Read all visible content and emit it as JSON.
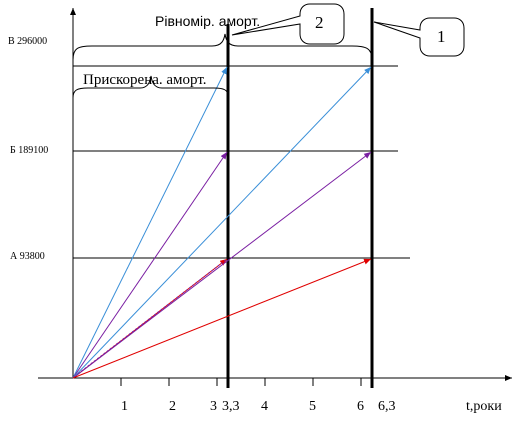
{
  "y_labels": {
    "v": "В 296000",
    "b": "Б 189100",
    "a": "А 93800"
  },
  "x_ticks": [
    "1",
    "2",
    "3",
    "3,3",
    "4",
    "5",
    "6",
    "6,3"
  ],
  "x_axis_label": "t,роки",
  "brace_labels": {
    "uniform": "Рівномір. аморт.",
    "accelerated": "Прискорена. аморт."
  },
  "callouts": {
    "one": "1",
    "two": "2"
  },
  "colors": {
    "red": "#e00000",
    "purple": "#7a1fa2",
    "blue": "#3a8fd8",
    "black": "#000000"
  }
}
